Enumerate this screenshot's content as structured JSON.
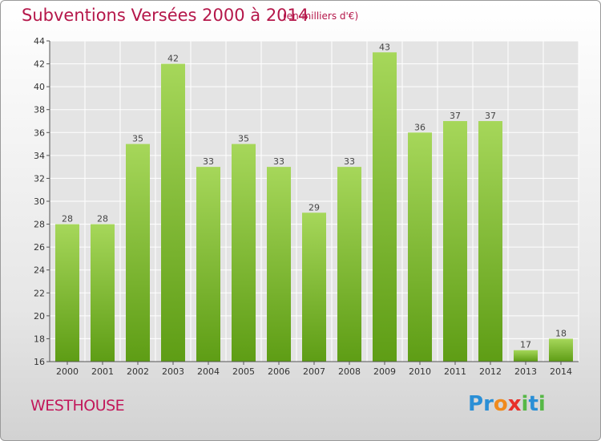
{
  "title": "Subventions Versées 2000 à 2014",
  "unit_label": "(en milliers d'€)",
  "place": "WESTHOUSE",
  "logo": {
    "text": "Proxiti",
    "letters": [
      {
        "ch": "P",
        "color": "#2a8fd6"
      },
      {
        "ch": "r",
        "color": "#2a8fd6"
      },
      {
        "ch": "o",
        "color": "#f08a1c"
      },
      {
        "ch": "x",
        "color": "#e8302a"
      },
      {
        "ch": "i",
        "color": "#57b847"
      },
      {
        "ch": "t",
        "color": "#2a8fd6"
      },
      {
        "ch": "i",
        "color": "#57b847"
      }
    ]
  },
  "colors": {
    "bar_light": "#a6d75a",
    "bar_dark": "#5e9d15",
    "title": "#b5174a",
    "grid": "#ffffff"
  },
  "chart_data": {
    "type": "bar",
    "title": "Subventions Versées 2000 à 2014",
    "ylabel": "",
    "xlabel": "",
    "categories": [
      "2000",
      "2001",
      "2002",
      "2003",
      "2004",
      "2005",
      "2006",
      "2007",
      "2008",
      "2009",
      "2010",
      "2011",
      "2012",
      "2013",
      "2014"
    ],
    "values": [
      28,
      28,
      35,
      42,
      33,
      35,
      33,
      29,
      33,
      43,
      36,
      37,
      37,
      17,
      18
    ],
    "ylim": [
      16,
      44
    ],
    "yticks": [
      16,
      18,
      20,
      22,
      24,
      26,
      28,
      30,
      32,
      34,
      36,
      38,
      40,
      42,
      44
    ],
    "grid": true,
    "legend": "none"
  }
}
